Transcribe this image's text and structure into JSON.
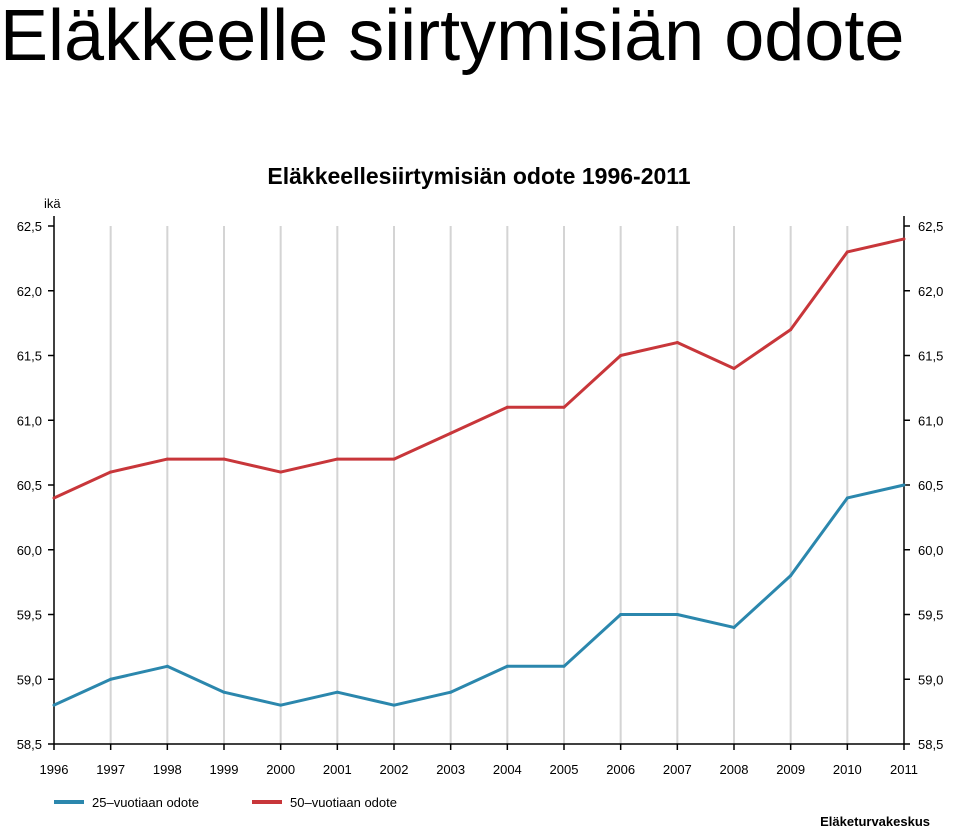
{
  "slide": {
    "title": "Eläkkeelle siirtymisiän odote"
  },
  "chart_data": {
    "type": "line",
    "title": "Eläkkeellesiirtymisiän odote 1996-2011",
    "ylabel": "ikä",
    "xlabel": "",
    "categories": [
      "1996",
      "1997",
      "1998",
      "1999",
      "2000",
      "2001",
      "2002",
      "2003",
      "2004",
      "2005",
      "2006",
      "2007",
      "2008",
      "2009",
      "2010",
      "2011"
    ],
    "ylim": [
      58.5,
      62.5
    ],
    "yticks": [
      58.5,
      59.0,
      59.5,
      60.0,
      60.5,
      61.0,
      61.5,
      62.0,
      62.5
    ],
    "ytick_labels": [
      "58,5",
      "59,0",
      "59,5",
      "60,0",
      "60,5",
      "61,0",
      "61,5",
      "62,0",
      "62,5"
    ],
    "grid": "vertical",
    "axes": "left and right",
    "legend_position": "bottom-left",
    "series": [
      {
        "name": "25–vuotiaan odote",
        "color": "#2b87ad",
        "values": [
          58.8,
          59.0,
          59.1,
          58.9,
          58.8,
          58.9,
          58.8,
          58.9,
          59.1,
          59.1,
          59.5,
          59.5,
          59.4,
          59.8,
          60.4,
          60.5
        ]
      },
      {
        "name": "50–vuotiaan odote",
        "color": "#c8363a",
        "values": [
          60.4,
          60.6,
          60.7,
          60.7,
          60.6,
          60.7,
          60.7,
          60.9,
          61.1,
          61.1,
          61.5,
          61.6,
          61.4,
          61.7,
          62.3,
          62.4
        ]
      }
    ],
    "source": "Eläketurvakeskus"
  }
}
